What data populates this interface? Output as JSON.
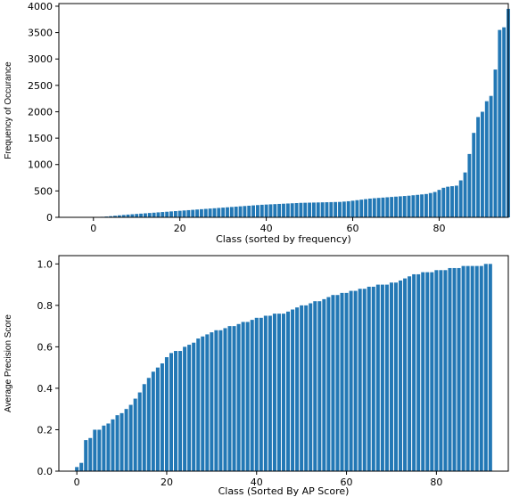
{
  "chart_data": [
    {
      "type": "bar",
      "title": "",
      "xlabel": "Class (sorted by frequency)",
      "ylabel": "Frequency of Occurance",
      "xlim": [
        -8,
        96
      ],
      "ylim": [
        0,
        4050
      ],
      "xticks": [
        0,
        20,
        40,
        60,
        80
      ],
      "yticks": [
        0,
        500,
        1000,
        1500,
        2000,
        2500,
        3000,
        3500,
        4000
      ],
      "x_start": 0,
      "values": [
        2,
        5,
        10,
        15,
        22,
        30,
        38,
        45,
        52,
        58,
        64,
        70,
        76,
        82,
        88,
        94,
        100,
        106,
        112,
        118,
        124,
        130,
        136,
        142,
        148,
        154,
        160,
        166,
        172,
        178,
        184,
        190,
        196,
        202,
        208,
        214,
        220,
        226,
        232,
        238,
        242,
        246,
        250,
        254,
        258,
        262,
        266,
        270,
        274,
        276,
        278,
        280,
        282,
        284,
        286,
        288,
        290,
        292,
        298,
        305,
        315,
        325,
        335,
        345,
        355,
        362,
        368,
        374,
        380,
        386,
        392,
        398,
        404,
        410,
        418,
        426,
        434,
        442,
        460,
        480,
        520,
        560,
        580,
        590,
        600,
        700,
        850,
        1200,
        1600,
        1900,
        2000,
        2200,
        2300,
        2800,
        3550,
        3600,
        3950
      ]
    },
    {
      "type": "bar",
      "title": "",
      "xlabel": "Class (Sorted By AP Score)",
      "ylabel": "Average Precision Score",
      "xlim": [
        -4,
        96
      ],
      "ylim": [
        0,
        1.04
      ],
      "xticks": [
        0,
        20,
        40,
        60,
        80
      ],
      "yticks": [
        0.0,
        0.2,
        0.4,
        0.6,
        0.8,
        1.0
      ],
      "ytick_labels": [
        "0.0",
        "0.2",
        "0.4",
        "0.6",
        "0.8",
        "1.0"
      ],
      "x_start": 0,
      "values": [
        0.02,
        0.04,
        0.15,
        0.16,
        0.2,
        0.2,
        0.22,
        0.23,
        0.25,
        0.27,
        0.28,
        0.3,
        0.32,
        0.35,
        0.38,
        0.42,
        0.45,
        0.48,
        0.5,
        0.52,
        0.55,
        0.57,
        0.58,
        0.58,
        0.6,
        0.61,
        0.62,
        0.64,
        0.65,
        0.66,
        0.67,
        0.68,
        0.68,
        0.69,
        0.7,
        0.7,
        0.71,
        0.72,
        0.72,
        0.73,
        0.74,
        0.74,
        0.75,
        0.75,
        0.76,
        0.76,
        0.76,
        0.77,
        0.78,
        0.79,
        0.8,
        0.8,
        0.81,
        0.82,
        0.82,
        0.83,
        0.84,
        0.85,
        0.85,
        0.86,
        0.86,
        0.87,
        0.87,
        0.88,
        0.88,
        0.89,
        0.89,
        0.9,
        0.9,
        0.9,
        0.91,
        0.91,
        0.92,
        0.93,
        0.94,
        0.95,
        0.95,
        0.96,
        0.96,
        0.96,
        0.97,
        0.97,
        0.97,
        0.98,
        0.98,
        0.98,
        0.99,
        0.99,
        0.99,
        0.99,
        0.99,
        1.0,
        1.0
      ]
    }
  ]
}
